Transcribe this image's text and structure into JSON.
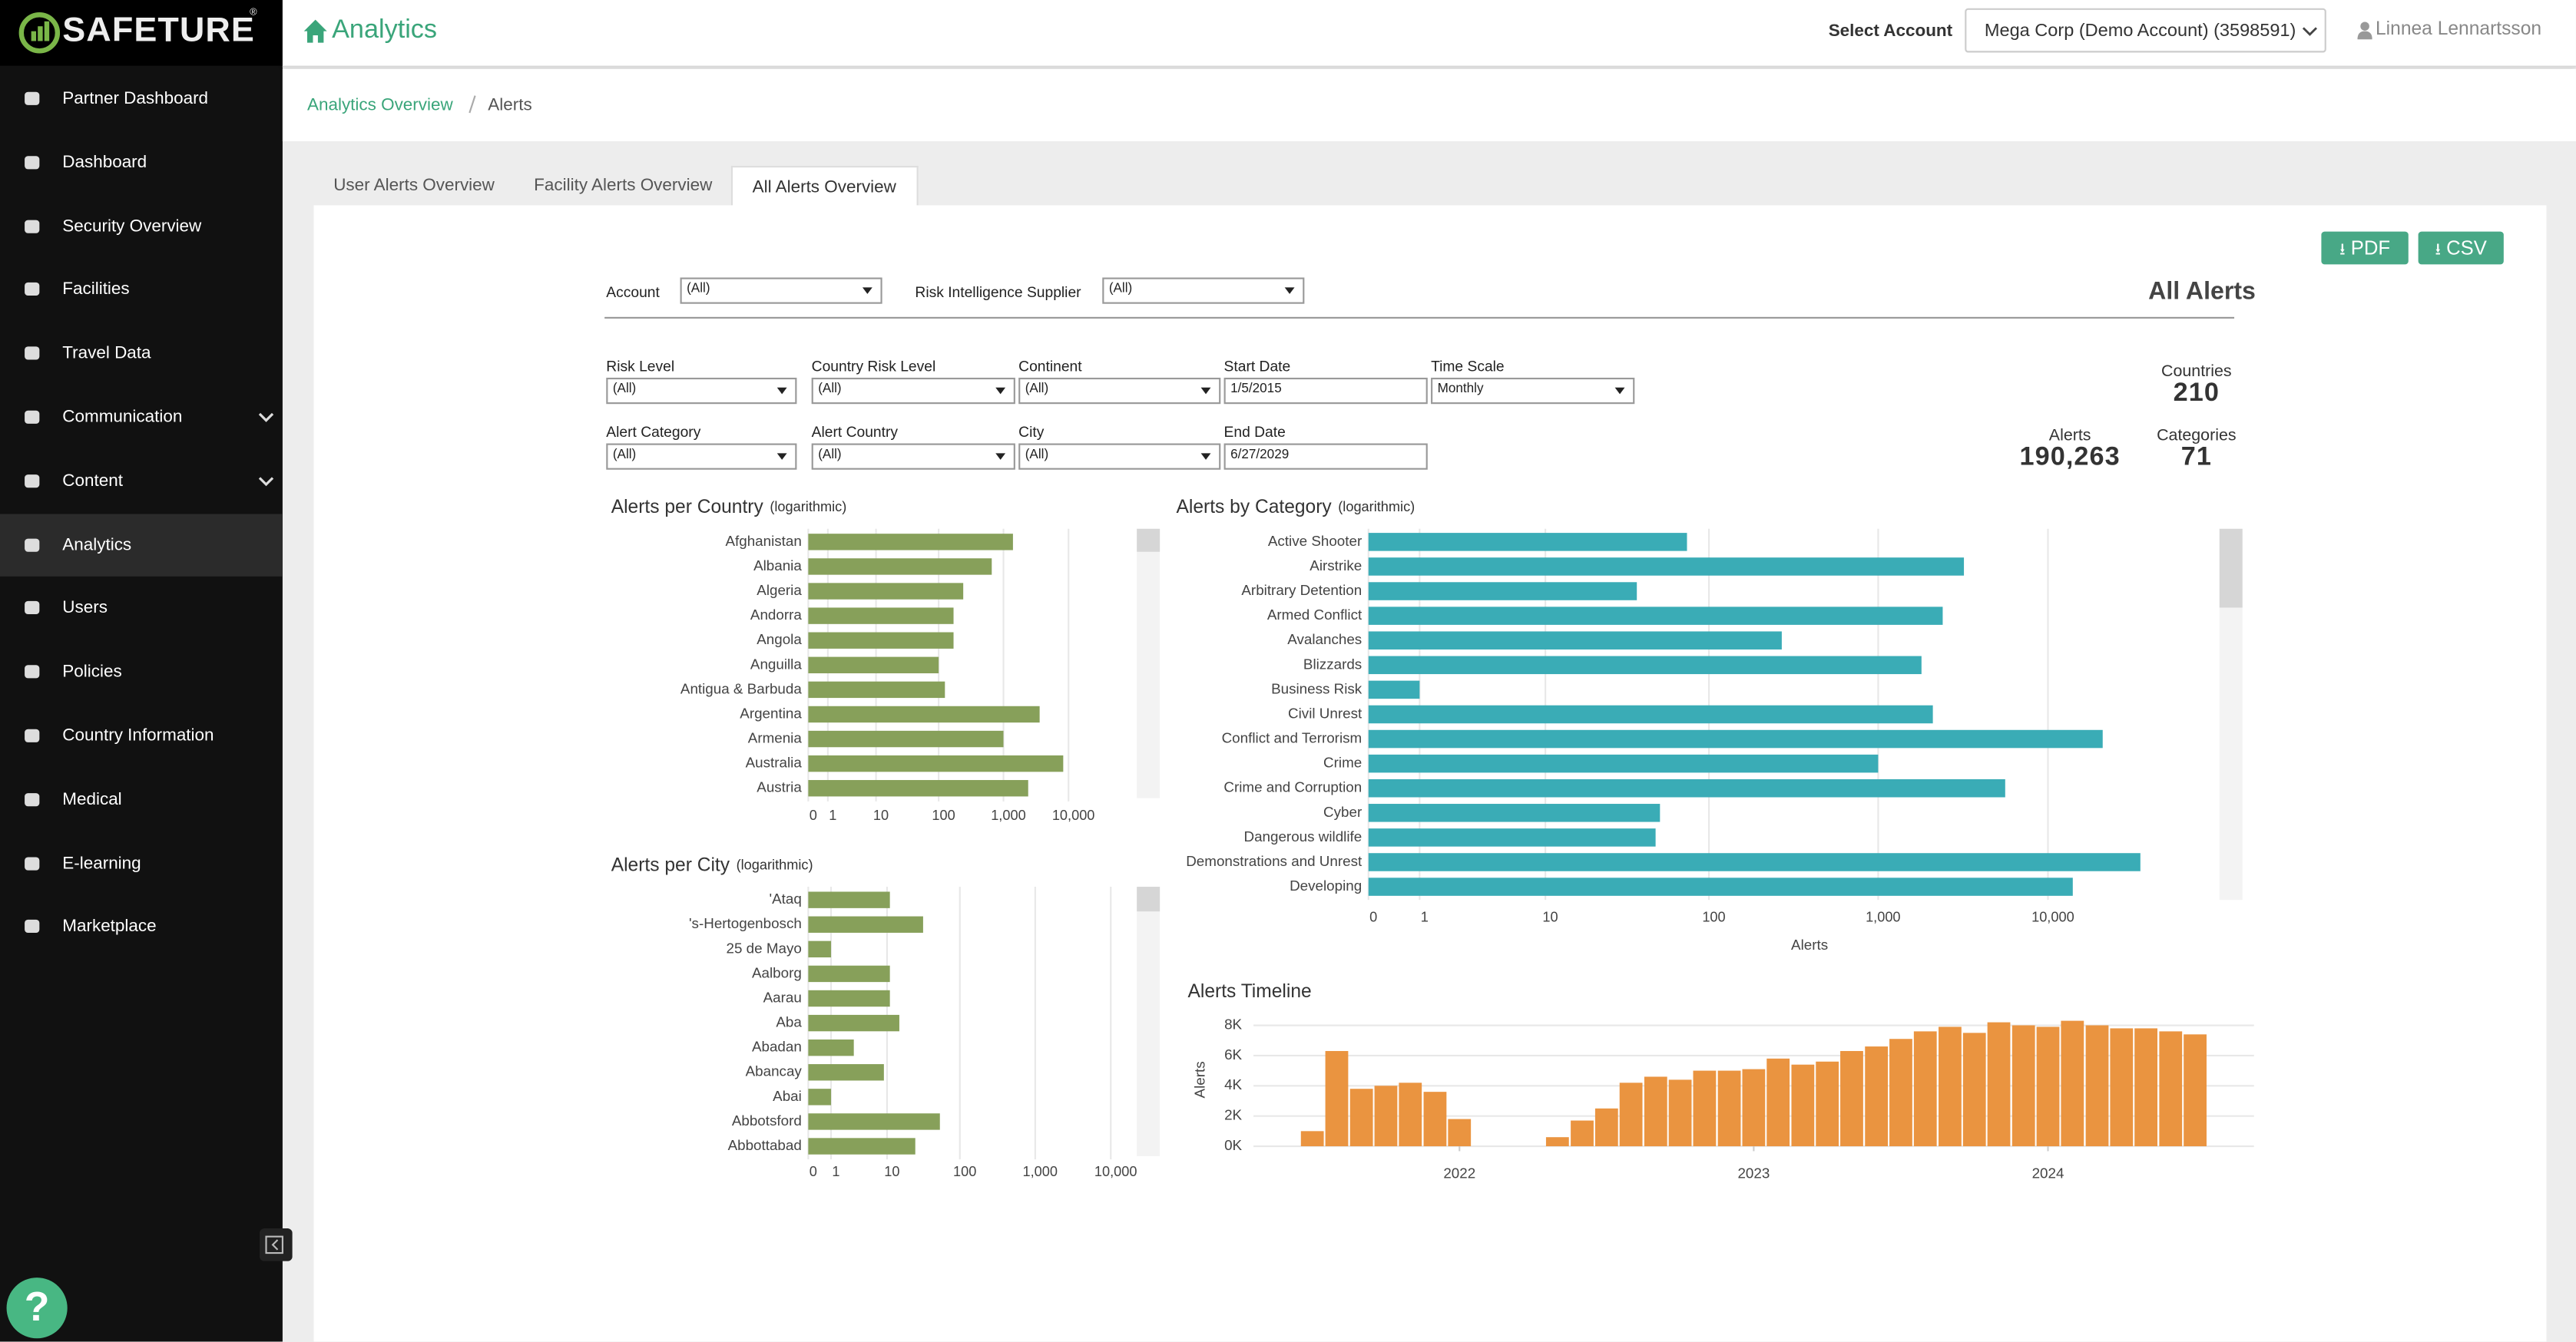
{
  "sidebar": {
    "logo": "SAFETURE",
    "logo_mark": "®",
    "nav": [
      {
        "label": "Partner Dashboard"
      },
      {
        "label": "Dashboard"
      },
      {
        "label": "Security Overview"
      },
      {
        "label": "Facilities"
      },
      {
        "label": "Travel Data"
      },
      {
        "label": "Communication",
        "submenu": true
      },
      {
        "label": "Content",
        "submenu": true
      },
      {
        "label": "Analytics",
        "active": true
      },
      {
        "label": "Users"
      },
      {
        "label": "Policies"
      },
      {
        "label": "Country Information"
      },
      {
        "label": "Medical"
      },
      {
        "label": "E-learning"
      },
      {
        "label": "Marketplace"
      }
    ],
    "help": "?"
  },
  "header": {
    "title": "Analytics",
    "account_label": "Select Account",
    "account": "Mega Corp (Demo Account) (3598591)",
    "user": "Linnea Lennartsson"
  },
  "breadcrumb": [
    "Analytics Overview",
    "Alerts"
  ],
  "tabs": [
    {
      "label": "User Alerts Overview"
    },
    {
      "label": "Facility Alerts Overview"
    },
    {
      "label": "All Alerts Overview",
      "active": true
    }
  ],
  "buttons": [
    "PDF",
    "CSV"
  ],
  "report_title": "All Alerts",
  "filters_top": [
    {
      "label": "Account",
      "value": "(All)"
    },
    {
      "label": "Risk Intelligence Supplier",
      "value": "(All)"
    }
  ],
  "filters": [
    [
      {
        "label": "Risk Level",
        "value": "(All)"
      },
      {
        "label": "Country Risk Level",
        "value": "(All)"
      },
      {
        "label": "Continent",
        "value": "(All)"
      },
      {
        "label": "Start Date",
        "value": "1/5/2015"
      },
      {
        "label": "Time Scale",
        "value": "Monthly"
      }
    ],
    [
      {
        "label": "Alert Category",
        "value": "(All)"
      },
      {
        "label": "Alert Country",
        "value": "(All)"
      },
      {
        "label": "City",
        "value": "(All)"
      },
      {
        "label": "End Date",
        "value": "6/27/2029"
      }
    ]
  ],
  "kpis": [
    {
      "label": "Countries",
      "value": "210"
    },
    {
      "label": "Alerts",
      "value": "190,263"
    },
    {
      "label": "Categories",
      "value": "71"
    }
  ],
  "charts": [
    {
      "type": "bar",
      "orientation": "horizontal",
      "title": "Alerts per Country",
      "subtitle": "(logarithmic)",
      "categories": [
        "Afghanistan",
        "Albania",
        "Algeria",
        "Andorra",
        "Angola",
        "Anguilla",
        "Antigua & Barbuda",
        "Argentina",
        "Armenia",
        "Australia",
        "Austria"
      ],
      "values": [
        1400,
        660,
        240,
        170,
        170,
        100,
        125,
        3600,
        1000,
        8300,
        2400
      ],
      "color": "#87a05a",
      "log": true,
      "xlim": [
        0,
        100000
      ],
      "xticks": [
        0,
        1,
        10,
        100,
        {
          "value": 1000,
          "label": "1,000"
        },
        {
          "value": 10000,
          "label": "10,000"
        }
      ],
      "grid": true
    },
    {
      "type": "bar",
      "orientation": "horizontal",
      "title": "Alerts by Category",
      "subtitle": "(logarithmic)",
      "x_label": "Alerts",
      "categories": [
        "Active Shooter",
        "Airstrike",
        "Arbitrary Detention",
        "Armed Conflict",
        "Avalanches",
        "Blizzards",
        "Business Risk",
        "Civil Unrest",
        "Conflict and Terrorism",
        "Crime",
        "Crime and Corruption",
        "Cyber",
        "Dangerous wildlife",
        "Demonstrations and Unrest",
        "Developing"
      ],
      "values": [
        74,
        3200,
        37,
        2400,
        270,
        1800,
        1,
        2100,
        21000,
        1000,
        5600,
        51,
        48,
        35000,
        14000
      ],
      "color": "#3aacb6",
      "log": true,
      "xlim": [
        0,
        100000
      ],
      "xticks": [
        0,
        1,
        10,
        100,
        {
          "value": 1000,
          "label": "1,000"
        },
        {
          "value": 10000,
          "label": "10,000"
        }
      ],
      "grid": true
    },
    {
      "type": "bar",
      "orientation": "horizontal",
      "title": "Alerts per City",
      "subtitle": "(logarithmic)",
      "categories": [
        "'Ataq",
        "'s-Hertogenbosch",
        "25 de Mayo",
        "Aalborg",
        "Aarau",
        "Aba",
        "Abadan",
        "Abancay",
        "Abai",
        "Abbotsford",
        "Abbottabad"
      ],
      "values": [
        11,
        32,
        1,
        11,
        11,
        15,
        3,
        9,
        1,
        54,
        25
      ],
      "color": "#87a05a",
      "log": true,
      "xlim": [
        0,
        20000
      ],
      "xticks": [
        0,
        1,
        10,
        100,
        {
          "value": 1000,
          "label": "1,000"
        },
        {
          "value": 10000,
          "label": "10,000"
        }
      ],
      "grid": true
    },
    {
      "type": "bar",
      "orientation": "vertical",
      "title": "Alerts Timeline",
      "y_label": "Alerts",
      "x": [
        2021.5,
        2021.583,
        2021.667,
        2021.75,
        2021.833,
        2021.917,
        2022,
        2022.333,
        2022.417,
        2022.5,
        2022.583,
        2022.667,
        2022.75,
        2022.833,
        2022.917,
        2023,
        2023.083,
        2023.167,
        2023.25,
        2023.333,
        2023.417,
        2023.5,
        2023.583,
        2023.667,
        2023.75,
        2023.833,
        2023.917,
        2024,
        2024.083,
        2024.167,
        2024.25,
        2024.333,
        2024.417,
        2024.5
      ],
      "values": [
        1000,
        6300,
        3800,
        4000,
        4200,
        3600,
        1800,
        600,
        1700,
        2500,
        4200,
        4600,
        4400,
        5000,
        5000,
        5100,
        5800,
        5400,
        5600,
        6300,
        6600,
        7100,
        7600,
        7900,
        7500,
        8200,
        8000,
        7900,
        8300,
        8000,
        7800,
        7800,
        7600,
        7400
      ],
      "color": "#ea9440",
      "xlim": [
        2021.3,
        2024.7
      ],
      "ylim": [
        0,
        8800
      ],
      "xticks": [
        2022,
        2023,
        2024
      ],
      "yticks": [
        {
          "value": 0,
          "label": "0K"
        },
        {
          "value": 2000,
          "label": "2K"
        },
        {
          "value": 4000,
          "label": "4K"
        },
        {
          "value": 6000,
          "label": "6K"
        },
        {
          "value": 8000,
          "label": "8K"
        }
      ],
      "grid": true
    }
  ]
}
